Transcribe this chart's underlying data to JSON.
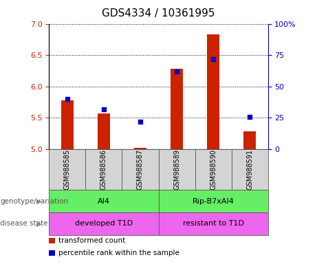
{
  "title": "GDS4334 / 10361995",
  "samples": [
    "GSM988585",
    "GSM988586",
    "GSM988587",
    "GSM988589",
    "GSM988590",
    "GSM988591"
  ],
  "bar_values": [
    5.78,
    5.57,
    5.02,
    6.28,
    6.83,
    5.28
  ],
  "percentile_values": [
    40,
    32,
    22,
    62,
    72,
    26
  ],
  "ylim_left": [
    5.0,
    7.0
  ],
  "ylim_right": [
    0,
    100
  ],
  "yticks_left": [
    5.0,
    5.5,
    6.0,
    6.5,
    7.0
  ],
  "yticks_right": [
    0,
    25,
    50,
    75,
    100
  ],
  "bar_color": "#cc2200",
  "dot_color": "#0000cc",
  "bar_width": 0.35,
  "genotype_labels": [
    "AI4",
    "Rip-B7xAI4"
  ],
  "genotype_ranges": [
    [
      0,
      2
    ],
    [
      3,
      5
    ]
  ],
  "genotype_color": "#66ee66",
  "disease_labels": [
    "developed T1D",
    "resistant to T1D"
  ],
  "disease_ranges": [
    [
      0,
      2
    ],
    [
      3,
      5
    ]
  ],
  "disease_color": "#ee66ee",
  "row_label_genotype": "genotype/variation",
  "row_label_disease": "disease state",
  "legend_items": [
    {
      "label": "transformed count",
      "color": "#cc2200"
    },
    {
      "label": "percentile rank within the sample",
      "color": "#0000cc"
    }
  ],
  "title_fontsize": 11,
  "tick_fontsize": 8,
  "label_fontsize": 8,
  "sample_fontsize": 7,
  "row_label_fontsize": 7.5
}
